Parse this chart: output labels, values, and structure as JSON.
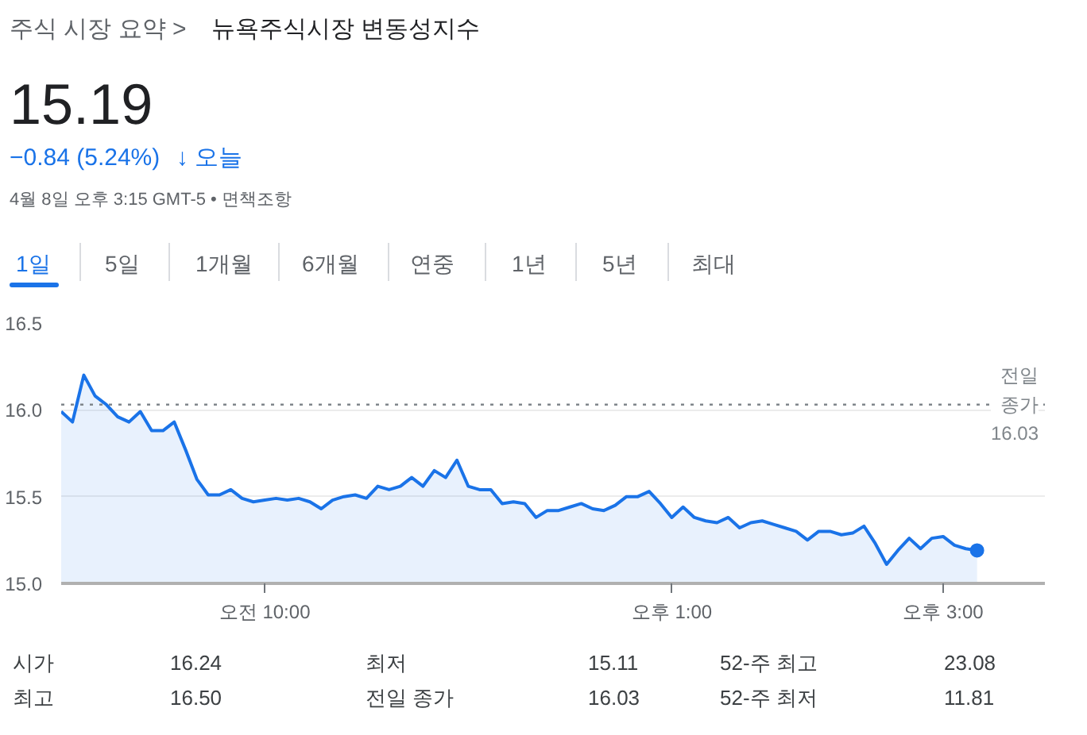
{
  "chart_data": {
    "type": "area",
    "title": "뉴욕주식시장 변동성지수",
    "annotations": [
      "주식 시장 요약 >",
      "15.19",
      "−0.84 (5.24%)",
      "↓ 오늘",
      "4월 8일 오후 3:15 GMT-5 • 면책조항",
      "1일",
      "5일",
      "1개월",
      "6개월",
      "연중",
      "1년",
      "5년",
      "최대",
      "시가",
      "16.24",
      "최저",
      "15.11",
      "52-주 최고",
      "23.08",
      "최고",
      "16.50",
      "전일 종가",
      "16.03",
      "52-주 최저",
      "11.81"
    ],
    "categories": [
      null,
      null,
      null,
      null,
      null,
      null,
      null,
      null,
      null,
      null,
      null,
      null,
      null,
      null,
      null,
      null,
      null,
      null,
      "오전 10:00",
      null,
      null,
      null,
      null,
      null,
      null,
      null,
      null,
      null,
      null,
      null,
      null,
      null,
      null,
      null,
      null,
      null,
      null,
      null,
      null,
      null,
      null,
      null,
      null,
      null,
      null,
      null,
      null,
      null,
      null,
      null,
      null,
      null,
      null,
      null,
      "오후 1:00",
      null,
      null,
      null,
      null,
      null,
      null,
      null,
      null,
      null,
      null,
      null,
      null,
      null,
      null,
      null,
      null,
      null,
      null,
      null,
      null,
      null,
      null,
      null,
      "오후 3:00",
      null,
      null,
      null
    ],
    "series": [
      {
        "color": "#1a73e8",
        "values": [
          15.99,
          15.93,
          16.2,
          16.08,
          16.03,
          15.96,
          15.93,
          15.99,
          15.88,
          15.88,
          15.93,
          15.77,
          15.6,
          15.51,
          15.51,
          15.54,
          15.49,
          15.47,
          15.48,
          15.49,
          15.48,
          15.49,
          15.47,
          15.43,
          15.48,
          15.5,
          15.51,
          15.49,
          15.56,
          15.54,
          15.56,
          15.61,
          15.56,
          15.65,
          15.61,
          15.71,
          15.56,
          15.54,
          15.54,
          15.46,
          15.47,
          15.46,
          15.38,
          15.42,
          15.42,
          15.44,
          15.46,
          15.43,
          15.42,
          15.45,
          15.5,
          15.5,
          15.53,
          15.46,
          15.38,
          15.44,
          15.38,
          15.36,
          15.35,
          15.38,
          15.32,
          15.35,
          15.36,
          15.34,
          15.32,
          15.3,
          15.25,
          15.3,
          15.3,
          15.28,
          15.29,
          15.33,
          15.23,
          15.11,
          15.19,
          15.26,
          15.2,
          15.26,
          15.27,
          15.22,
          15.2,
          15.19
        ]
      }
    ],
    "ylim": [
      15.0,
      16.5
    ],
    "yticks": [
      {
        "value": 15,
        "label": "15.0"
      },
      15.5,
      {
        "value": 16,
        "label": "16.0"
      },
      16.5
    ],
    "grid": "y",
    "ref_lines": [
      {
        "axis": "y",
        "value": 16.03,
        "label": "전일 종가",
        "line_style": "dotted",
        "color": "#80868b"
      }
    ]
  }
}
